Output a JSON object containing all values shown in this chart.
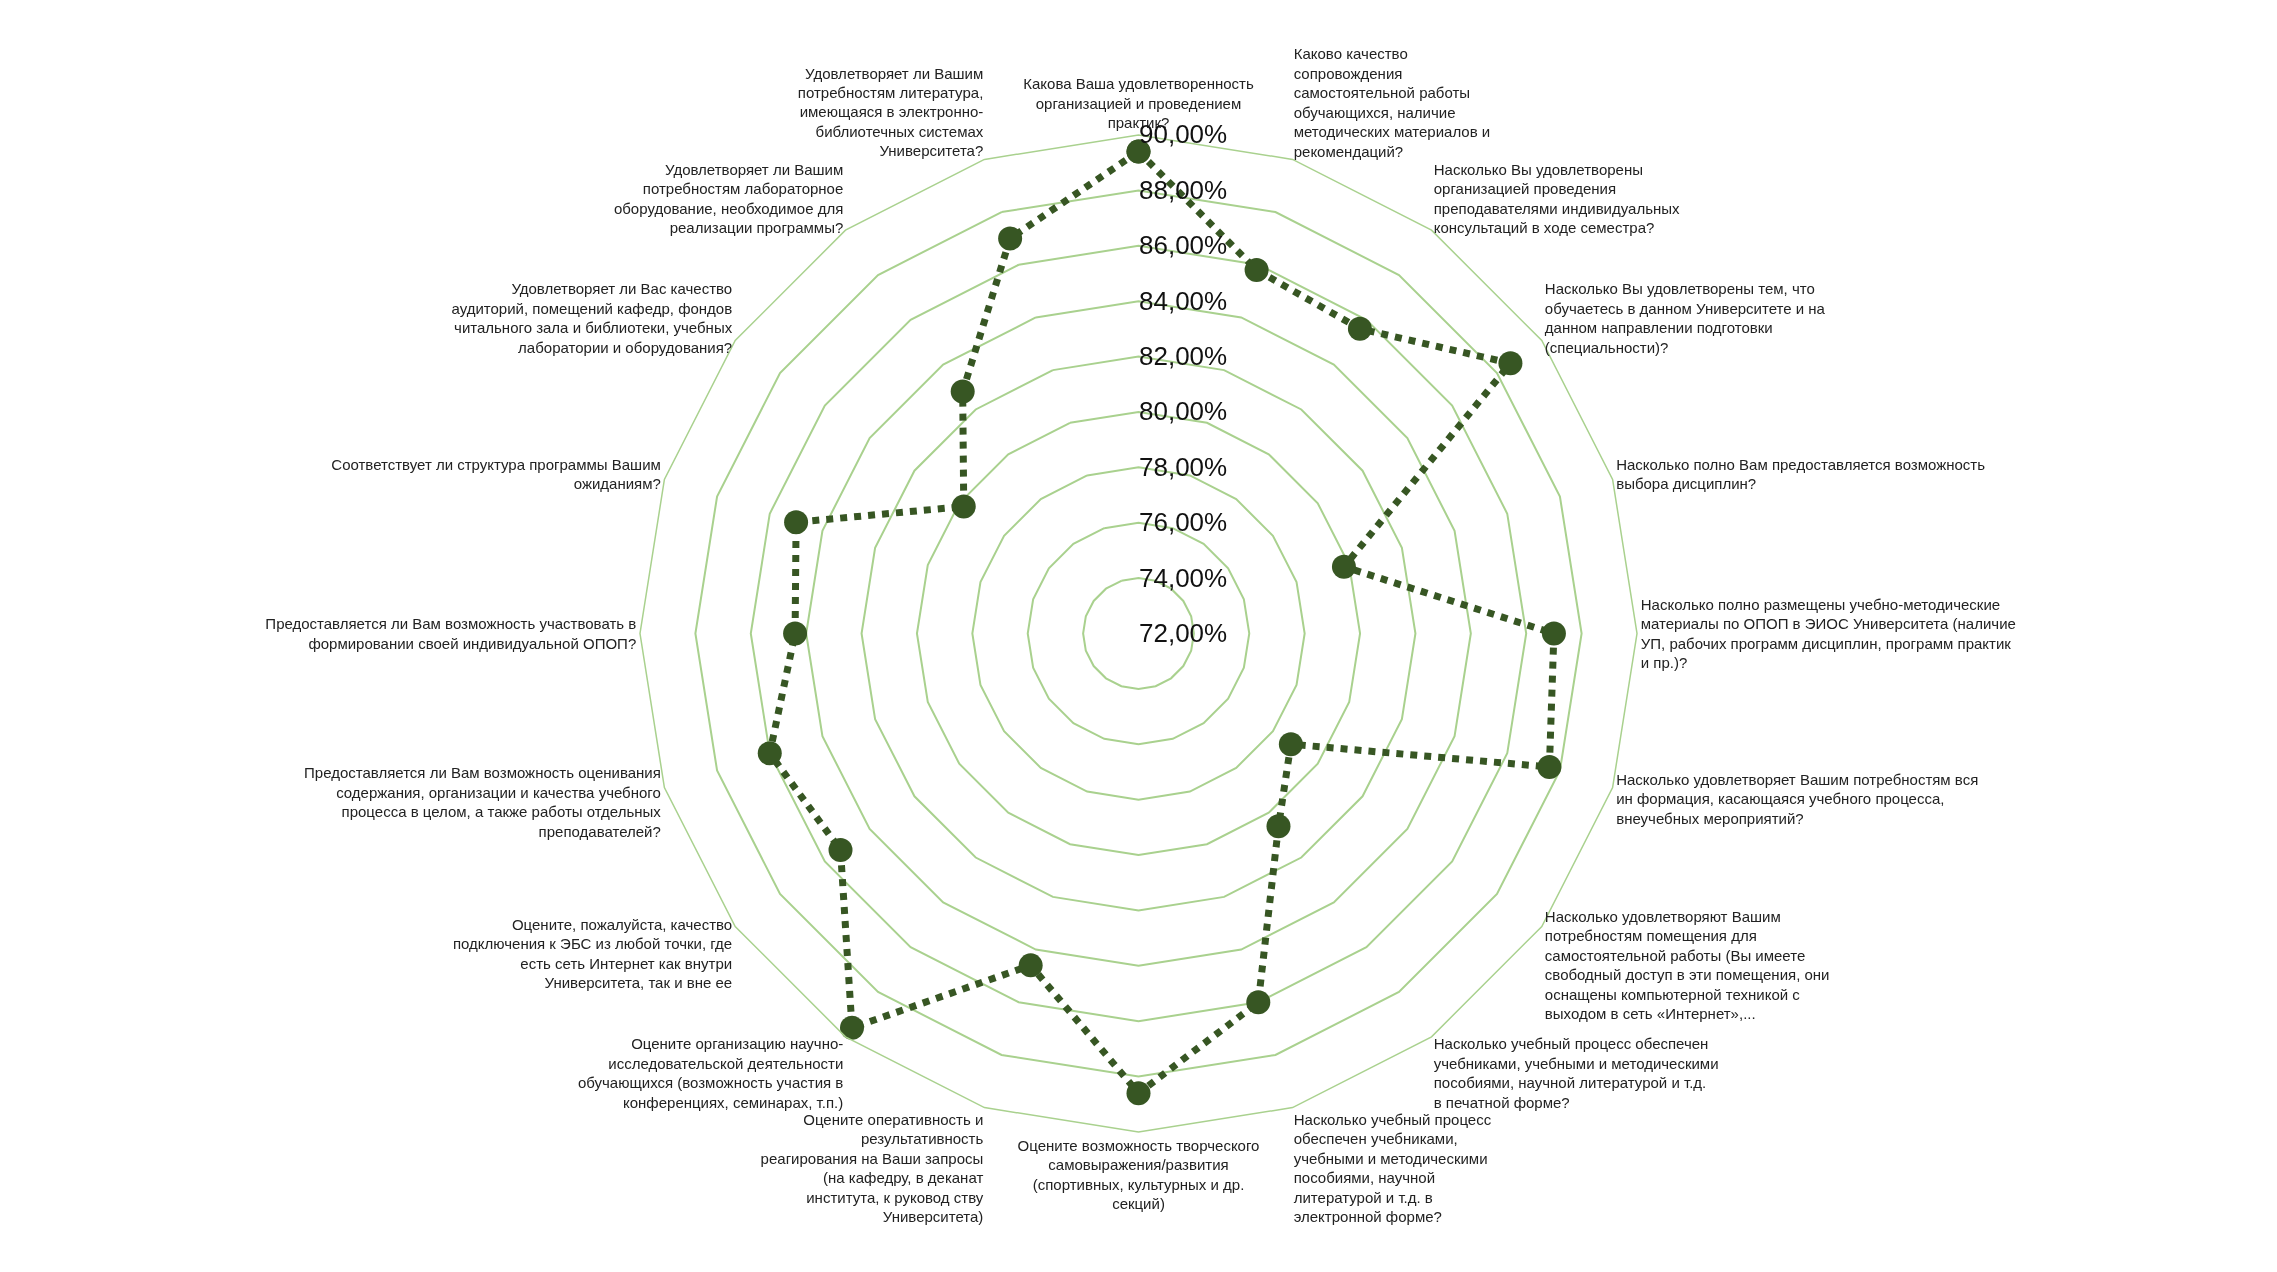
{
  "chart_data": {
    "type": "radar",
    "categories": [
      "Какова Ваша удовлетворенность организацией и проведением практик?",
      "Каково качество сопровождения самостоятельной работы обучающихся, наличие методических материалов и рекомендаций?",
      "Насколько Вы удовлетворены организацией проведения преподавателями индивидуальных консультаций в ходе семестра?",
      "Насколько Вы удовлетворены тем, что обучаетесь в данном Университете и на данном направлении подготовки (специальности)?",
      "Насколько полно Вам предоставляется возможность выбора дисциплин?",
      "Насколько полно размещены учебно-методические материалы по ОПОП в ЭИОС Университета (наличие УП, рабочих программ дисциплин, программ практик и пр.)?",
      "Насколько удовлетворяет Вашим потребностям вся ин формация, касающаяся учебного процесса, внеучебных мероприятий?",
      "Насколько удовлетворяют Вашим потребностям помещения для самостоятельной работы (Вы имеете свободный доступ в эти помещения, они оснащены компьютерной техникой с выходом в сеть «Интернет»,...",
      "Насколько учебный процесс обеспечен учебниками, учебными и методическими пособиями, научной литературой и т.д. в печатной форме?",
      "Насколько учебный процесс обеспечен учебниками, учебными и методическими пособиями, научной литературой и т.д. в электронной форме?",
      "Оцените возможность творческого самовыражения/развития (спортивных, культурных и др. секций)",
      "Оцените оперативность и результативность реагирования на Ваши запросы (на кафедру, в деканат института, к руковод ству Университета)",
      "Оцените организацию научно-исследовательской деятельности обучающихся (возможность участия в конференциях, семинарах, т.п.)",
      "Оцените, пожалуйста, качество подключения к ЭБС из любой точки, где есть сеть Интернет как внутри Университета, так и вне ее",
      "Предоставляется ли Вам возможность оценивания содержания, организации и качества учебного процесса в целом, а также работы отдельных преподавателей?",
      "Предоставляется ли Вам возможность участвовать в формировании своей индивидуальной ОПОП?",
      "Соответствует ли структура программы Вашим ожиданиям?",
      "Удовлетворяет ли Вас качество аудиторий, помещений кафедр, фондов читального зала и библиотеки, учебных лаборатории и оборудования?",
      "Удовлетворяет ли Вашим потребностям лабораторное оборудование, необходимое для реализации программы?",
      "Удовлетворяет ли Вашим потребностям литература, имеющаяся в электронно-библиотечных системах Университета?"
    ],
    "series": [
      {
        "color": "#375623",
        "values": [
          89.4,
          85.8,
          85.6,
          88.6,
          79.8,
          87.0,
          87.6,
          78.8,
          80.6,
          86.0,
          88.6,
          84.6,
          89.6,
          85.3,
          86.0,
          84.4,
          85.0,
          79.8,
          82.8,
          87.0
        ]
      }
    ],
    "ylim": [
      72,
      90
    ],
    "yticks": [
      {
        "value": 72,
        "label": "72,00%"
      },
      {
        "value": 74,
        "label": "74,00%"
      },
      {
        "value": 76,
        "label": "76,00%"
      },
      {
        "value": 78,
        "label": "78,00%"
      },
      {
        "value": 80,
        "label": "80,00%"
      },
      {
        "value": 82,
        "label": "82,00%"
      },
      {
        "value": 84,
        "label": "84,00%"
      },
      {
        "value": 86,
        "label": "86,00%"
      },
      {
        "value": 88,
        "label": "88,00%"
      },
      {
        "value": 90,
        "label": "90,00%"
      }
    ],
    "grid": true,
    "legend": false,
    "marker": "circle",
    "line_style": "dotted"
  }
}
